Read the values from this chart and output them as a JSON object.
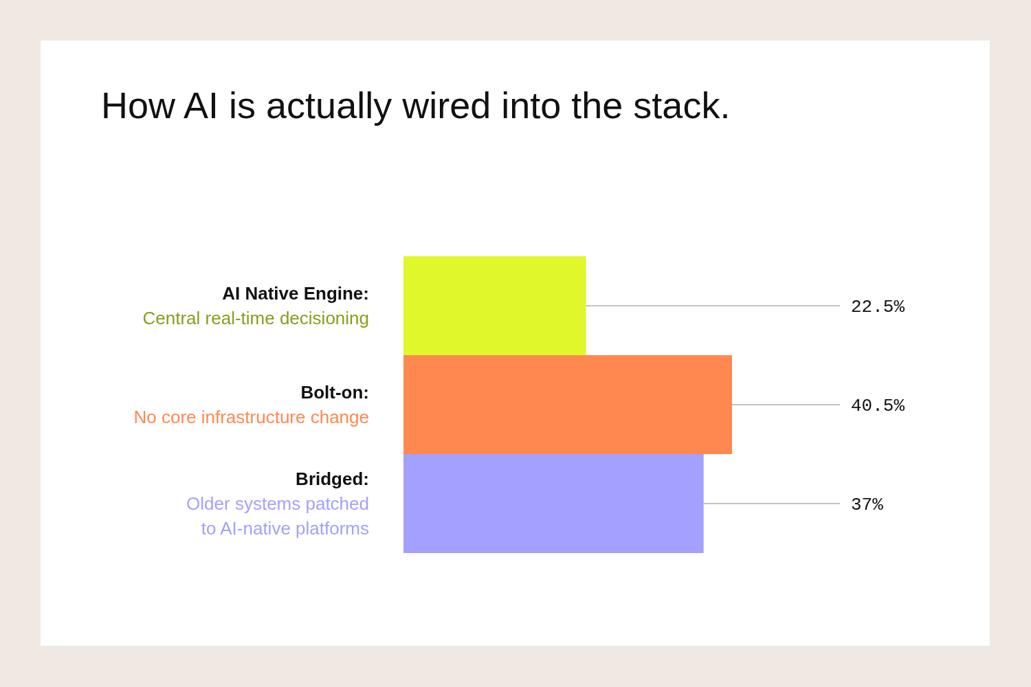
{
  "chart_data": {
    "type": "bar",
    "orientation": "horizontal",
    "title": "How AI is actually wired into the stack.",
    "categories": [
      "AI Native Engine:\nCentral real-time decisioning",
      "Bolt-on:\nNo core infrastructure change",
      "Bridged:\nOlder systems patched\nto AI-native platforms"
    ],
    "values": [
      22.5,
      40.5,
      37
    ],
    "value_labels": [
      "22.5%",
      "40.5%",
      "37%"
    ],
    "colors": [
      "#dff72b",
      "#ff8850",
      "#a3a0ff"
    ]
  }
}
